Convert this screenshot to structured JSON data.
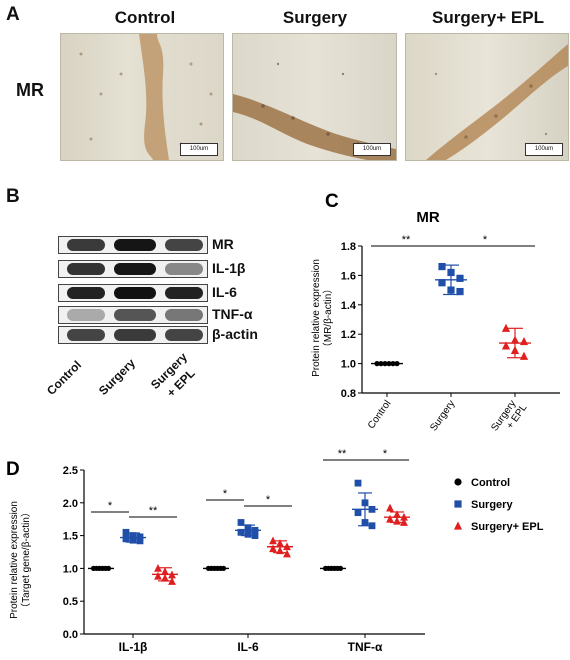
{
  "panel_a": {
    "label": "A",
    "row_label": "MR",
    "columns": [
      "Control",
      "Surgery",
      "Surgery+ EPL"
    ],
    "scale_bar": "100um"
  },
  "panel_b": {
    "label": "B",
    "proteins": [
      "MR",
      "IL-1β",
      "IL-6",
      "TNF-α",
      "β-actin"
    ],
    "lanes": [
      "Control",
      "Surgery",
      "Surgery",
      "+ EPL"
    ]
  },
  "chart_data": [
    {
      "id": "C",
      "label": "C",
      "type": "scatter",
      "title": "MR",
      "ylabel": "Protein relative expression (MR/β-actin)",
      "ylabel_line1": "Protein relative expression",
      "ylabel_line2": "（MR/β-actin）",
      "ylim": [
        0.8,
        1.8
      ],
      "yticks": [
        "0.8",
        "1.0",
        "1.2",
        "1.4",
        "1.6",
        "1.8"
      ],
      "categories": [
        "Control",
        "Surgery",
        "Surgery",
        "+ EPL"
      ],
      "groups": [
        {
          "points": [
            1.0,
            1.0,
            1.0,
            1.0,
            1.0,
            1.0
          ],
          "mean": 1.0,
          "sd": 0.0,
          "color": "#000000",
          "marker": "circle"
        },
        {
          "points": [
            1.66,
            1.62,
            1.58,
            1.55,
            1.5,
            1.49
          ],
          "mean": 1.57,
          "sd": 0.1,
          "color": "#1f4fa8",
          "marker": "square"
        },
        {
          "points": [
            1.24,
            1.16,
            1.15,
            1.12,
            1.09,
            1.05
          ],
          "mean": 1.14,
          "sd": 0.1,
          "color": "#e02020",
          "marker": "triangle"
        }
      ],
      "significance": [
        {
          "from": 0,
          "to": 1,
          "text": "**"
        },
        {
          "from": 1,
          "to": 2,
          "text": "*"
        }
      ]
    },
    {
      "id": "D",
      "label": "D",
      "type": "scatter",
      "ylabel": "Protein relative expression (Target gene/β-actin)",
      "ylabel_line1": "Protein relative expression",
      "ylabel_line2": "（Target gene/β-actin）",
      "ylim": [
        0.0,
        2.5
      ],
      "yticks": [
        "0.0",
        "0.5",
        "1.0",
        "1.5",
        "2.0",
        "2.5"
      ],
      "categories": [
        "IL-1β",
        "IL-6",
        "TNF-α"
      ],
      "series": [
        {
          "name": "Control",
          "color": "#000000",
          "marker": "circle"
        },
        {
          "name": "Surgery",
          "color": "#1f4fa8",
          "marker": "square"
        },
        {
          "name": "Surgery+ EPL",
          "color": "#e02020",
          "marker": "triangle"
        }
      ],
      "data": [
        [
          {
            "points": [
              1.0,
              1.0,
              1.0,
              1.0,
              1.0,
              1.0
            ],
            "mean": 1.0,
            "sd": 0.0
          },
          {
            "points": [
              1.55,
              1.5,
              1.48,
              1.45,
              1.43,
              1.42
            ],
            "mean": 1.47,
            "sd": 0.07
          },
          {
            "points": [
              1.0,
              0.95,
              0.9,
              0.88,
              0.85,
              0.8
            ],
            "mean": 0.91,
            "sd": 0.1
          }
        ],
        [
          {
            "points": [
              1.0,
              1.0,
              1.0,
              1.0,
              1.0,
              1.0
            ],
            "mean": 1.0,
            "sd": 0.0
          },
          {
            "points": [
              1.7,
              1.62,
              1.58,
              1.55,
              1.52,
              1.5
            ],
            "mean": 1.58,
            "sd": 0.08
          },
          {
            "points": [
              1.42,
              1.38,
              1.33,
              1.3,
              1.27,
              1.22
            ],
            "mean": 1.33,
            "sd": 0.09
          }
        ],
        [
          {
            "points": [
              1.0,
              1.0,
              1.0,
              1.0,
              1.0,
              1.0
            ],
            "mean": 1.0,
            "sd": 0.0
          },
          {
            "points": [
              2.3,
              2.0,
              1.9,
              1.85,
              1.7,
              1.65
            ],
            "mean": 1.9,
            "sd": 0.25
          },
          {
            "points": [
              1.92,
              1.82,
              1.78,
              1.75,
              1.72,
              1.7
            ],
            "mean": 1.78,
            "sd": 0.08
          }
        ]
      ],
      "significance": [
        {
          "cat": 0,
          "from": 0,
          "to": 1,
          "text": "*"
        },
        {
          "cat": 0,
          "from": 1,
          "to": 2,
          "text": "**"
        },
        {
          "cat": 1,
          "from": 0,
          "to": 1,
          "text": "*"
        },
        {
          "cat": 1,
          "from": 1,
          "to": 2,
          "text": "*"
        },
        {
          "cat": 2,
          "from": 0,
          "to": 1,
          "text": "**"
        },
        {
          "cat": 2,
          "from": 1,
          "to": 2,
          "text": "*"
        }
      ],
      "legend": "right"
    }
  ],
  "colors": {
    "control": "#000000",
    "surgery": "#1f4fa8",
    "epl": "#e02020"
  }
}
